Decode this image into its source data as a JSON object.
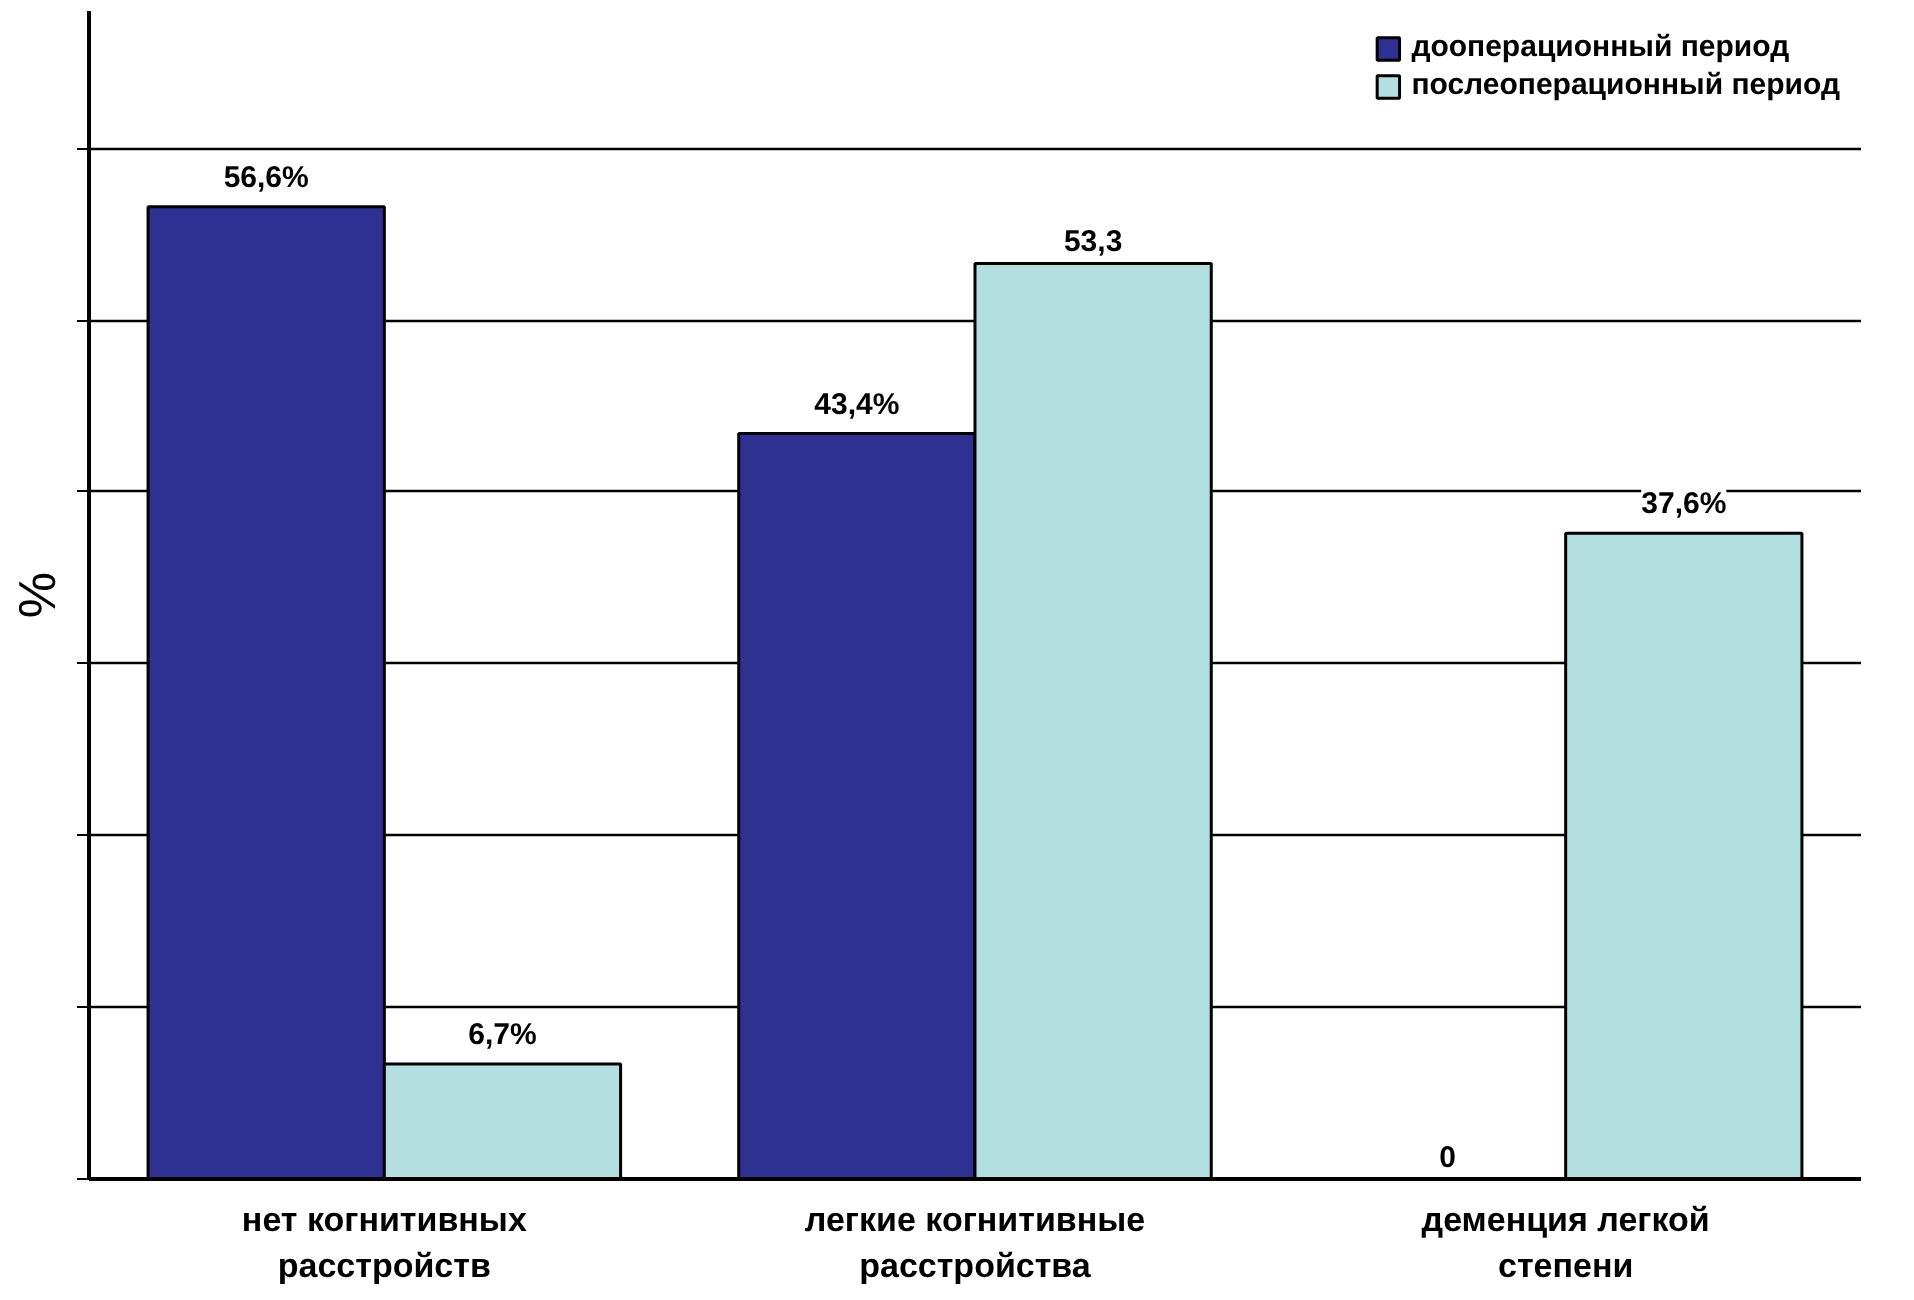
{
  "chart_data": {
    "type": "bar",
    "ylabel": "%",
    "categories": [
      "нет когнитивных\nрасстройств",
      "легкие когнитивные\nрасстройства",
      "деменция легкой\nстепени"
    ],
    "series": [
      {
        "name": "дооперационный период",
        "color": "#2e3192",
        "values": [
          56.6,
          43.4,
          0
        ],
        "value_labels": [
          "56,6%",
          "43,4%",
          "0"
        ]
      },
      {
        "name": "послеоперационный период",
        "color": "#b4dfe0",
        "values": [
          6.7,
          53.3,
          37.6
        ],
        "value_labels": [
          "6,7%",
          "53,3",
          "37,6%"
        ]
      }
    ],
    "ylim": [
      0,
      68
    ],
    "yticks": [
      {
        "value": 0,
        "label": null
      },
      {
        "value": 10,
        "label": null
      },
      {
        "value": 20,
        "label": null
      },
      {
        "value": 30,
        "label": null
      },
      {
        "value": 40,
        "label": null
      },
      {
        "value": 50,
        "label": null
      },
      {
        "value": 60,
        "label": null
      }
    ],
    "grid": "y",
    "legend": "top right",
    "tick_labels": "x"
  }
}
